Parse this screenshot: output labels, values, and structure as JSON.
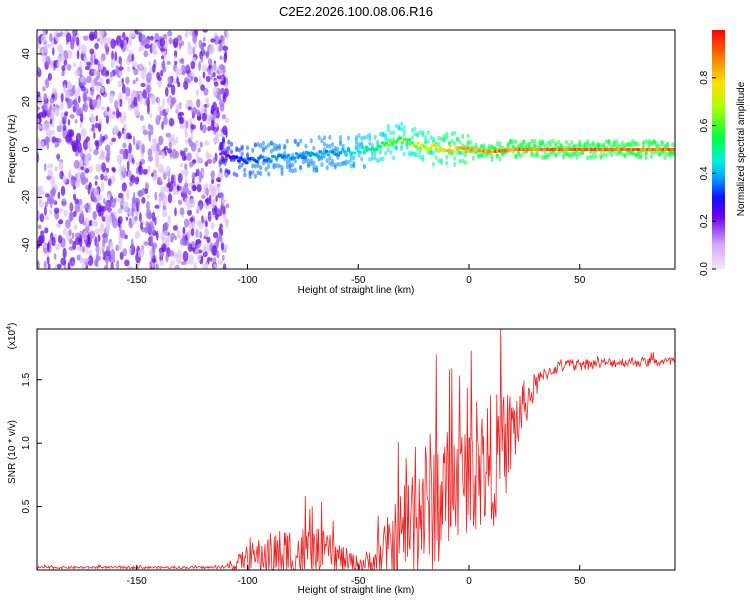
{
  "title": "C2E2.2026.100.08.06.R16",
  "colorbar": {
    "label": "Normalized spectral amplitude",
    "ticks": [
      "0.0",
      "0.2",
      "0.4",
      "0.6",
      "0.8"
    ],
    "tick_values": [
      0,
      0.2,
      0.4,
      0.6,
      0.8
    ],
    "range": [
      0,
      1
    ],
    "colormap": [
      "#f2e6fb",
      "#6a00e8",
      "#0030ff",
      "#00e5ff",
      "#00ff40",
      "#f5ff00",
      "#ff8000",
      "#ff0000"
    ]
  },
  "chart_data": [
    {
      "type": "heatmap",
      "name": "spectrogram",
      "xlabel": "Height of straight line (km)",
      "ylabel": "Frequency (Hz)",
      "xlim": [
        -195,
        93
      ],
      "ylim": [
        -50,
        50
      ],
      "xticks": [
        -150,
        -100,
        -50,
        0,
        50
      ],
      "xtick_labels": [
        "-150",
        "-100",
        "-50",
        "0",
        "50"
      ],
      "yticks": [
        -40,
        -20,
        0,
        20,
        40
      ],
      "ytick_labels": [
        "-40",
        "-20",
        "0",
        "20",
        "40"
      ],
      "noise_region_x": [
        -195,
        -112
      ],
      "signal_trace": {
        "x": [
          -112,
          -105,
          -100,
          -90,
          -80,
          -70,
          -60,
          -50,
          -45,
          -40,
          -35,
          -32,
          -30,
          -25,
          -20,
          -15,
          -10,
          -5,
          0,
          5,
          10,
          20,
          30,
          50,
          70,
          93
        ],
        "y": [
          -2,
          -4,
          -5,
          -4,
          -3,
          -2,
          -1.5,
          -0.5,
          0,
          2,
          3,
          4,
          4,
          2,
          1,
          0.5,
          0.5,
          0.3,
          0,
          -0.5,
          -1,
          0,
          0,
          0,
          0,
          0
        ],
        "amplitude": [
          0.2,
          0.3,
          0.35,
          0.4,
          0.4,
          0.42,
          0.42,
          0.5,
          0.55,
          0.6,
          0.65,
          0.65,
          0.65,
          0.7,
          0.75,
          0.8,
          0.85,
          0.85,
          0.9,
          0.9,
          0.95,
          0.95,
          0.95,
          0.95,
          0.95,
          0.95
        ]
      }
    },
    {
      "type": "line",
      "name": "snr",
      "xlabel": "Height of straight line (km)",
      "ylabel": "SNR (10 * v/v)",
      "scale_label": "(x10",
      "scale_exp": "4",
      "xlim": [
        -195,
        93
      ],
      "ylim": [
        0,
        1.9
      ],
      "xticks": [
        -150,
        -100,
        -50,
        0,
        50
      ],
      "xtick_labels": [
        "-150",
        "-100",
        "-50",
        "0",
        "50"
      ],
      "yticks": [
        0.5,
        1.0,
        1.5
      ],
      "ytick_labels": [
        "0.5",
        "1.0",
        "1.5"
      ],
      "color": "#ee2222",
      "envelope": {
        "x": [
          -195,
          -110,
          -106,
          -100,
          -90,
          -80,
          -70,
          -65,
          -60,
          -55,
          -50,
          -45,
          -40,
          -35,
          -30,
          -25,
          -20,
          -15,
          -10,
          -5,
          0,
          5,
          10,
          15,
          20,
          25,
          30,
          35,
          40,
          50,
          60,
          70,
          80,
          93
        ],
        "base": [
          0.02,
          0.02,
          0.04,
          0.1,
          0.12,
          0.12,
          0.14,
          0.13,
          0.1,
          0.07,
          0.05,
          0.05,
          0.1,
          0.18,
          0.3,
          0.42,
          0.5,
          0.55,
          0.62,
          0.7,
          0.75,
          0.8,
          0.85,
          0.95,
          1.1,
          1.3,
          1.45,
          1.55,
          1.6,
          1.62,
          1.63,
          1.64,
          1.64,
          1.64
        ],
        "amp": [
          0.01,
          0.01,
          0.05,
          0.1,
          0.18,
          0.25,
          0.2,
          0.18,
          0.15,
          0.1,
          0.06,
          0.12,
          0.22,
          0.3,
          0.4,
          0.5,
          0.55,
          0.6,
          0.5,
          0.45,
          0.45,
          0.5,
          0.55,
          0.45,
          0.35,
          0.2,
          0.1,
          0.06,
          0.05,
          0.05,
          0.04,
          0.04,
          0.04,
          0.04
        ]
      }
    }
  ]
}
